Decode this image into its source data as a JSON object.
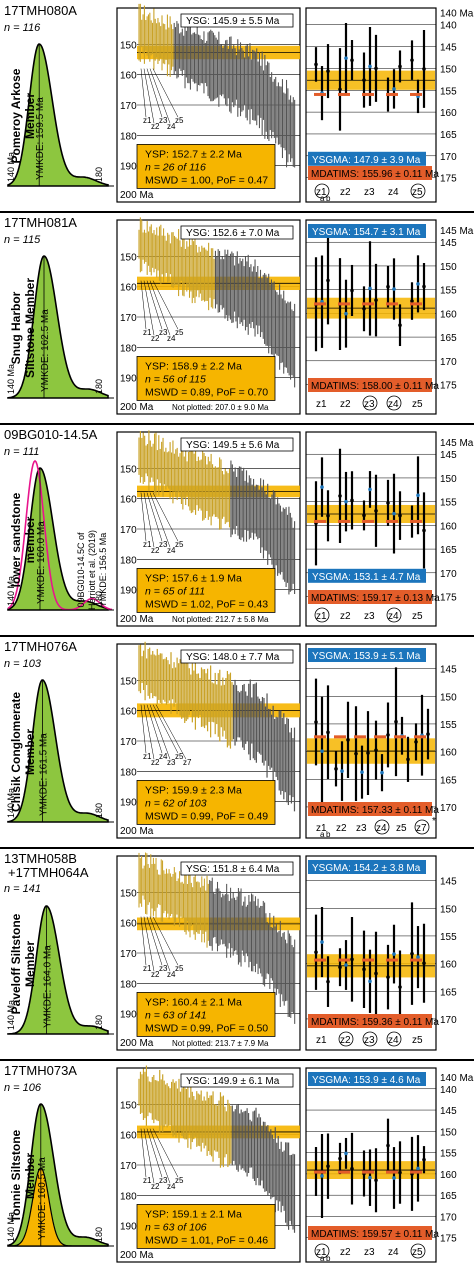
{
  "figure": {
    "panels": [
      {
        "id": "p1",
        "sample": "17TMH080A",
        "n_label": "n = 116",
        "member": [
          "Pomeroy Arkose",
          "Member"
        ],
        "ymkde": "YMKDE: 159.5 Ma",
        "ymkde_value": 159.5,
        "kde_axis": [
          "140 Ma",
          "180"
        ],
        "ysg": "YSG: 145.9 ± 5.5 Ma",
        "ysp": [
          "YSP: 152.7 ± 2.2 Ma",
          "n = 26 of 116",
          "MSWD = 1.00, PoF = 0.47"
        ],
        "ysp_value": 152.7,
        "ysp_err": 2.2,
        "n_total": 116,
        "n_ysp": 26,
        "bar_axis": {
          "min": 140,
          "max": 200,
          "ticks": [
            150,
            160,
            170,
            180,
            190
          ],
          "end_label": "200 Ma"
        },
        "not_plotted": "",
        "zlabels": [
          "z1",
          "z2",
          "z3",
          "z4",
          "z5"
        ],
        "ysgma": "YSGMA: 147.9 ± 3.9 Ma",
        "ysgma_pos": "bottom",
        "mdatims": "MDATIMS: 155.96 ± 0.11 Ma",
        "mdatims_value": 155.96,
        "r_axis": {
          "min": 138,
          "max": 176,
          "ticks": [
            140,
            145,
            150,
            155,
            160,
            165,
            170,
            175
          ]
        },
        "r_axis_first": "140 Ma",
        "circled": [
          0,
          4
        ],
        "xaxis_labels": [
          "z1",
          "z2",
          "z3",
          "z4",
          "z5"
        ],
        "sub_labels": [
          "a",
          "b"
        ]
      },
      {
        "id": "p2",
        "sample": "17TMH081A",
        "n_label": "n = 115",
        "member": [
          "Snug Harbor",
          "Siltstone Member"
        ],
        "ymkde": "YMKDE: 162.5 Ma",
        "ymkde_value": 162.5,
        "kde_axis": [
          "140 Ma",
          "180"
        ],
        "ysg": "YSG: 152.6 ± 7.0 Ma",
        "ysp": [
          "YSP: 158.9 ± 2.2 Ma",
          "n = 56 of 115",
          "MSWD = 0.89, PoF = 0.70"
        ],
        "ysp_value": 158.9,
        "ysp_err": 2.2,
        "n_total": 115,
        "n_ysp": 56,
        "bar_axis": {
          "min": 140,
          "max": 200,
          "ticks": [
            150,
            160,
            170,
            180,
            190
          ],
          "end_label": "200 Ma"
        },
        "not_plotted": "Not plotted: 207.0 ± 9.0 Ma",
        "zlabels": [
          "z1",
          "z2",
          "z3",
          "z4",
          "z5"
        ],
        "ysgma": "YSGMA: 154.7 ± 3.1 Ma",
        "ysgma_pos": "top",
        "mdatims": "MDATIMS: 158.00 ± 0.11 Ma",
        "mdatims_value": 158.0,
        "r_axis": {
          "min": 142,
          "max": 177,
          "ticks": [
            145,
            150,
            155,
            160,
            165,
            170,
            175
          ]
        },
        "r_axis_first": "145 Ma",
        "circled": [
          2,
          3
        ],
        "xaxis_labels": [
          "z1",
          "z2",
          "z3",
          "z4",
          "z5"
        ],
        "sub_labels": []
      },
      {
        "id": "p3",
        "sample": "09BG010-14.5A",
        "n_label": "n = 111",
        "member": [
          "lower sandstone",
          "member"
        ],
        "ymkde": "YMKDE: 160.0 Ma",
        "ymkde_value": 160.0,
        "kde_axis": [
          "140 Ma",
          "180"
        ],
        "ref_note": [
          "09BG010-14.5C of",
          "Herriott et al. (2019)",
          "YMKDE: 156.5 Ma"
        ],
        "ysg": "YSG: 149.5 ± 5.6 Ma",
        "ysp": [
          "YSP: 157.6 ± 1.9 Ma",
          "n = 65 of 111",
          "MSWD = 1.02, PoF = 0.43"
        ],
        "ysp_value": 157.6,
        "ysp_err": 1.9,
        "n_total": 111,
        "n_ysp": 65,
        "bar_axis": {
          "min": 140,
          "max": 200,
          "ticks": [
            150,
            160,
            170,
            180,
            190
          ],
          "end_label": "200 Ma"
        },
        "not_plotted": "Not plotted: 212.7 ± 5.8 Ma",
        "zlabels": [
          "z1",
          "z2",
          "z3",
          "z4",
          "z5"
        ],
        "ysgma": "YSGMA: 153.1 ± 4.7 Ma",
        "ysgma_pos": "bottom",
        "mdatims": "MDATIMS: 159.17 ± 0.13 Ma",
        "mdatims_value": 159.17,
        "r_axis": {
          "min": 142,
          "max": 177,
          "ticks": [
            145,
            150,
            155,
            160,
            165,
            170,
            175
          ]
        },
        "r_axis_first": "145 Ma",
        "circled": [
          0,
          3
        ],
        "xaxis_labels": [
          "z1",
          "z2",
          "z3",
          "z4",
          "z5"
        ],
        "sub_labels": []
      },
      {
        "id": "p4",
        "sample": "17TMH076A",
        "n_label": "n = 103",
        "member": [
          "Chisik Conglomerate",
          "Member"
        ],
        "ymkde": "YMKDE: 161.5 Ma",
        "ymkde_value": 161.5,
        "kde_axis": [
          "140 Ma",
          "180"
        ],
        "ysg": "YSG: 148.0 ± 7.7 Ma",
        "ysp": [
          "YSP: 159.9 ± 2.3 Ma",
          "n = 62 of 103",
          "MSWD = 0.99, PoF = 0.49"
        ],
        "ysp_value": 159.9,
        "ysp_err": 2.3,
        "n_total": 103,
        "n_ysp": 62,
        "bar_axis": {
          "min": 140,
          "max": 200,
          "ticks": [
            150,
            160,
            170,
            180,
            190
          ],
          "end_label": "200 Ma"
        },
        "not_plotted": "",
        "zlabels": [
          "z1",
          "z2",
          "z4",
          "z3",
          "z5",
          "z7"
        ],
        "ysgma": "YSGMA: 153.9 ± 5.1 Ma",
        "ysgma_pos": "top",
        "mdatims": "MDATIMS: 157.33 ± 0.11 Ma",
        "mdatims_value": 157.33,
        "r_axis": {
          "min": 142,
          "max": 172,
          "ticks": [
            145,
            150,
            155,
            160,
            165,
            170
          ]
        },
        "r_axis_first": "",
        "circled": [
          3,
          5
        ],
        "xaxis_labels": [
          "z1",
          "z2",
          "z3",
          "z4",
          "z5",
          "z7"
        ],
        "sub_labels": [
          "a",
          "b"
        ],
        "star": "*"
      },
      {
        "id": "p5",
        "sample": "13TMH058B",
        "sample2": "+17TMH064A",
        "n_label": "n = 141",
        "member": [
          "Paveloff Siltstone",
          "Member"
        ],
        "ymkde": "YMKDE: 164.0 Ma",
        "ymkde_value": 164.0,
        "kde_axis": [
          "140 Ma",
          "180"
        ],
        "ysg": "YSG: 151.8 ± 6.4 Ma",
        "ysp": [
          "YSP: 160.4 ± 2.1 Ma",
          "n = 63 of 141",
          "MSWD = 0.99, PoF = 0.50"
        ],
        "ysp_value": 160.4,
        "ysp_err": 2.1,
        "n_total": 141,
        "n_ysp": 63,
        "bar_axis": {
          "min": 140,
          "max": 200,
          "ticks": [
            150,
            160,
            170,
            180,
            190
          ],
          "end_label": "200 Ma"
        },
        "not_plotted": "Not plotted: 213.7 ± 7.9 Ma",
        "zlabels": [
          "z1",
          "z2",
          "z3",
          "z4",
          "z5"
        ],
        "ysgma": "YSGMA: 154.2 ± 3.8 Ma",
        "ysgma_pos": "top",
        "mdatims": "MDATIMS: 159.36 ± 0.11 Ma",
        "mdatims_value": 159.36,
        "r_axis": {
          "min": 142,
          "max": 172,
          "ticks": [
            145,
            150,
            155,
            160,
            165,
            170
          ]
        },
        "r_axis_first": "",
        "circled": [
          1,
          2,
          3
        ],
        "xaxis_labels": [
          "z1",
          "z2",
          "z3",
          "z4",
          "z5"
        ],
        "sub_labels": []
      },
      {
        "id": "p6",
        "sample": "17TMH073A",
        "n_label": "n = 106",
        "member": [
          "Tonnie Siltstone",
          "Member"
        ],
        "ymkde": "YMKDE: 160.5 Ma",
        "ymkde_value": 160.5,
        "kde_axis": [
          "140 Ma",
          "180"
        ],
        "ysg": "YSG: 149.9 ± 6.1 Ma",
        "ysp": [
          "YSP: 159.1 ± 2.1 Ma",
          "n = 63 of 106",
          "MSWD = 1.01, PoF = 0.46"
        ],
        "ysp_value": 159.1,
        "ysp_err": 2.1,
        "n_total": 106,
        "n_ysp": 63,
        "bar_axis": {
          "min": 140,
          "max": 200,
          "ticks": [
            150,
            160,
            170,
            180,
            190
          ],
          "end_label": "200 Ma"
        },
        "not_plotted": "",
        "zlabels": [
          "z1",
          "z2",
          "z3",
          "z4",
          "z5"
        ],
        "ysgma": "YSGMA: 153.9 ± 4.6 Ma",
        "ysgma_pos": "top",
        "mdatims": "MDATIMS: 159.57 ± 0.11 Ma",
        "mdatims_value": 159.57,
        "r_axis": {
          "min": 137,
          "max": 176,
          "ticks": [
            140,
            145,
            150,
            155,
            160,
            165,
            170,
            175
          ]
        },
        "r_axis_first": "140 Ma",
        "circled": [
          0,
          4
        ],
        "xaxis_labels": [
          "z1",
          "z2",
          "z3",
          "z4",
          "z5"
        ],
        "sub_labels": [
          "a",
          "b"
        ]
      }
    ]
  },
  "colors": {
    "kde_fill": "#8dc63f",
    "kde_fill2": "#f7b500",
    "ref_curve": "#e8158c",
    "gold_band": "#f6b500",
    "gold_bar": "#c9a227",
    "grey_bar": "#555555",
    "ysgma": "#1c75bc",
    "mdatims": "#e35d2a",
    "ysp_box": "#f6b500"
  },
  "chart_data": {
    "type": "bar",
    "description_units": "Ma",
    "series": [
      {
        "name": "17TMH080A",
        "values": [
          152.7,
          145.9,
          147.9,
          155.96,
          159.5
        ]
      },
      {
        "name": "17TMH081A",
        "values": [
          158.9,
          152.6,
          154.7,
          158.0,
          162.5
        ]
      },
      {
        "name": "09BG010-14.5A",
        "values": [
          157.6,
          149.5,
          153.1,
          159.17,
          160.0
        ]
      },
      {
        "name": "17TMH076A",
        "values": [
          159.9,
          148.0,
          153.9,
          157.33,
          161.5
        ]
      },
      {
        "name": "13TMH058B+17TMH064A",
        "values": [
          160.4,
          151.8,
          154.2,
          159.36,
          164.0
        ]
      },
      {
        "name": "17TMH073A",
        "values": [
          159.1,
          149.9,
          153.9,
          159.57,
          160.5
        ]
      }
    ],
    "categories": [
      "YSP",
      "YSG",
      "YSGMA",
      "MDATIMS",
      "YMKDE"
    ],
    "ylim": [
      140,
      200
    ]
  }
}
